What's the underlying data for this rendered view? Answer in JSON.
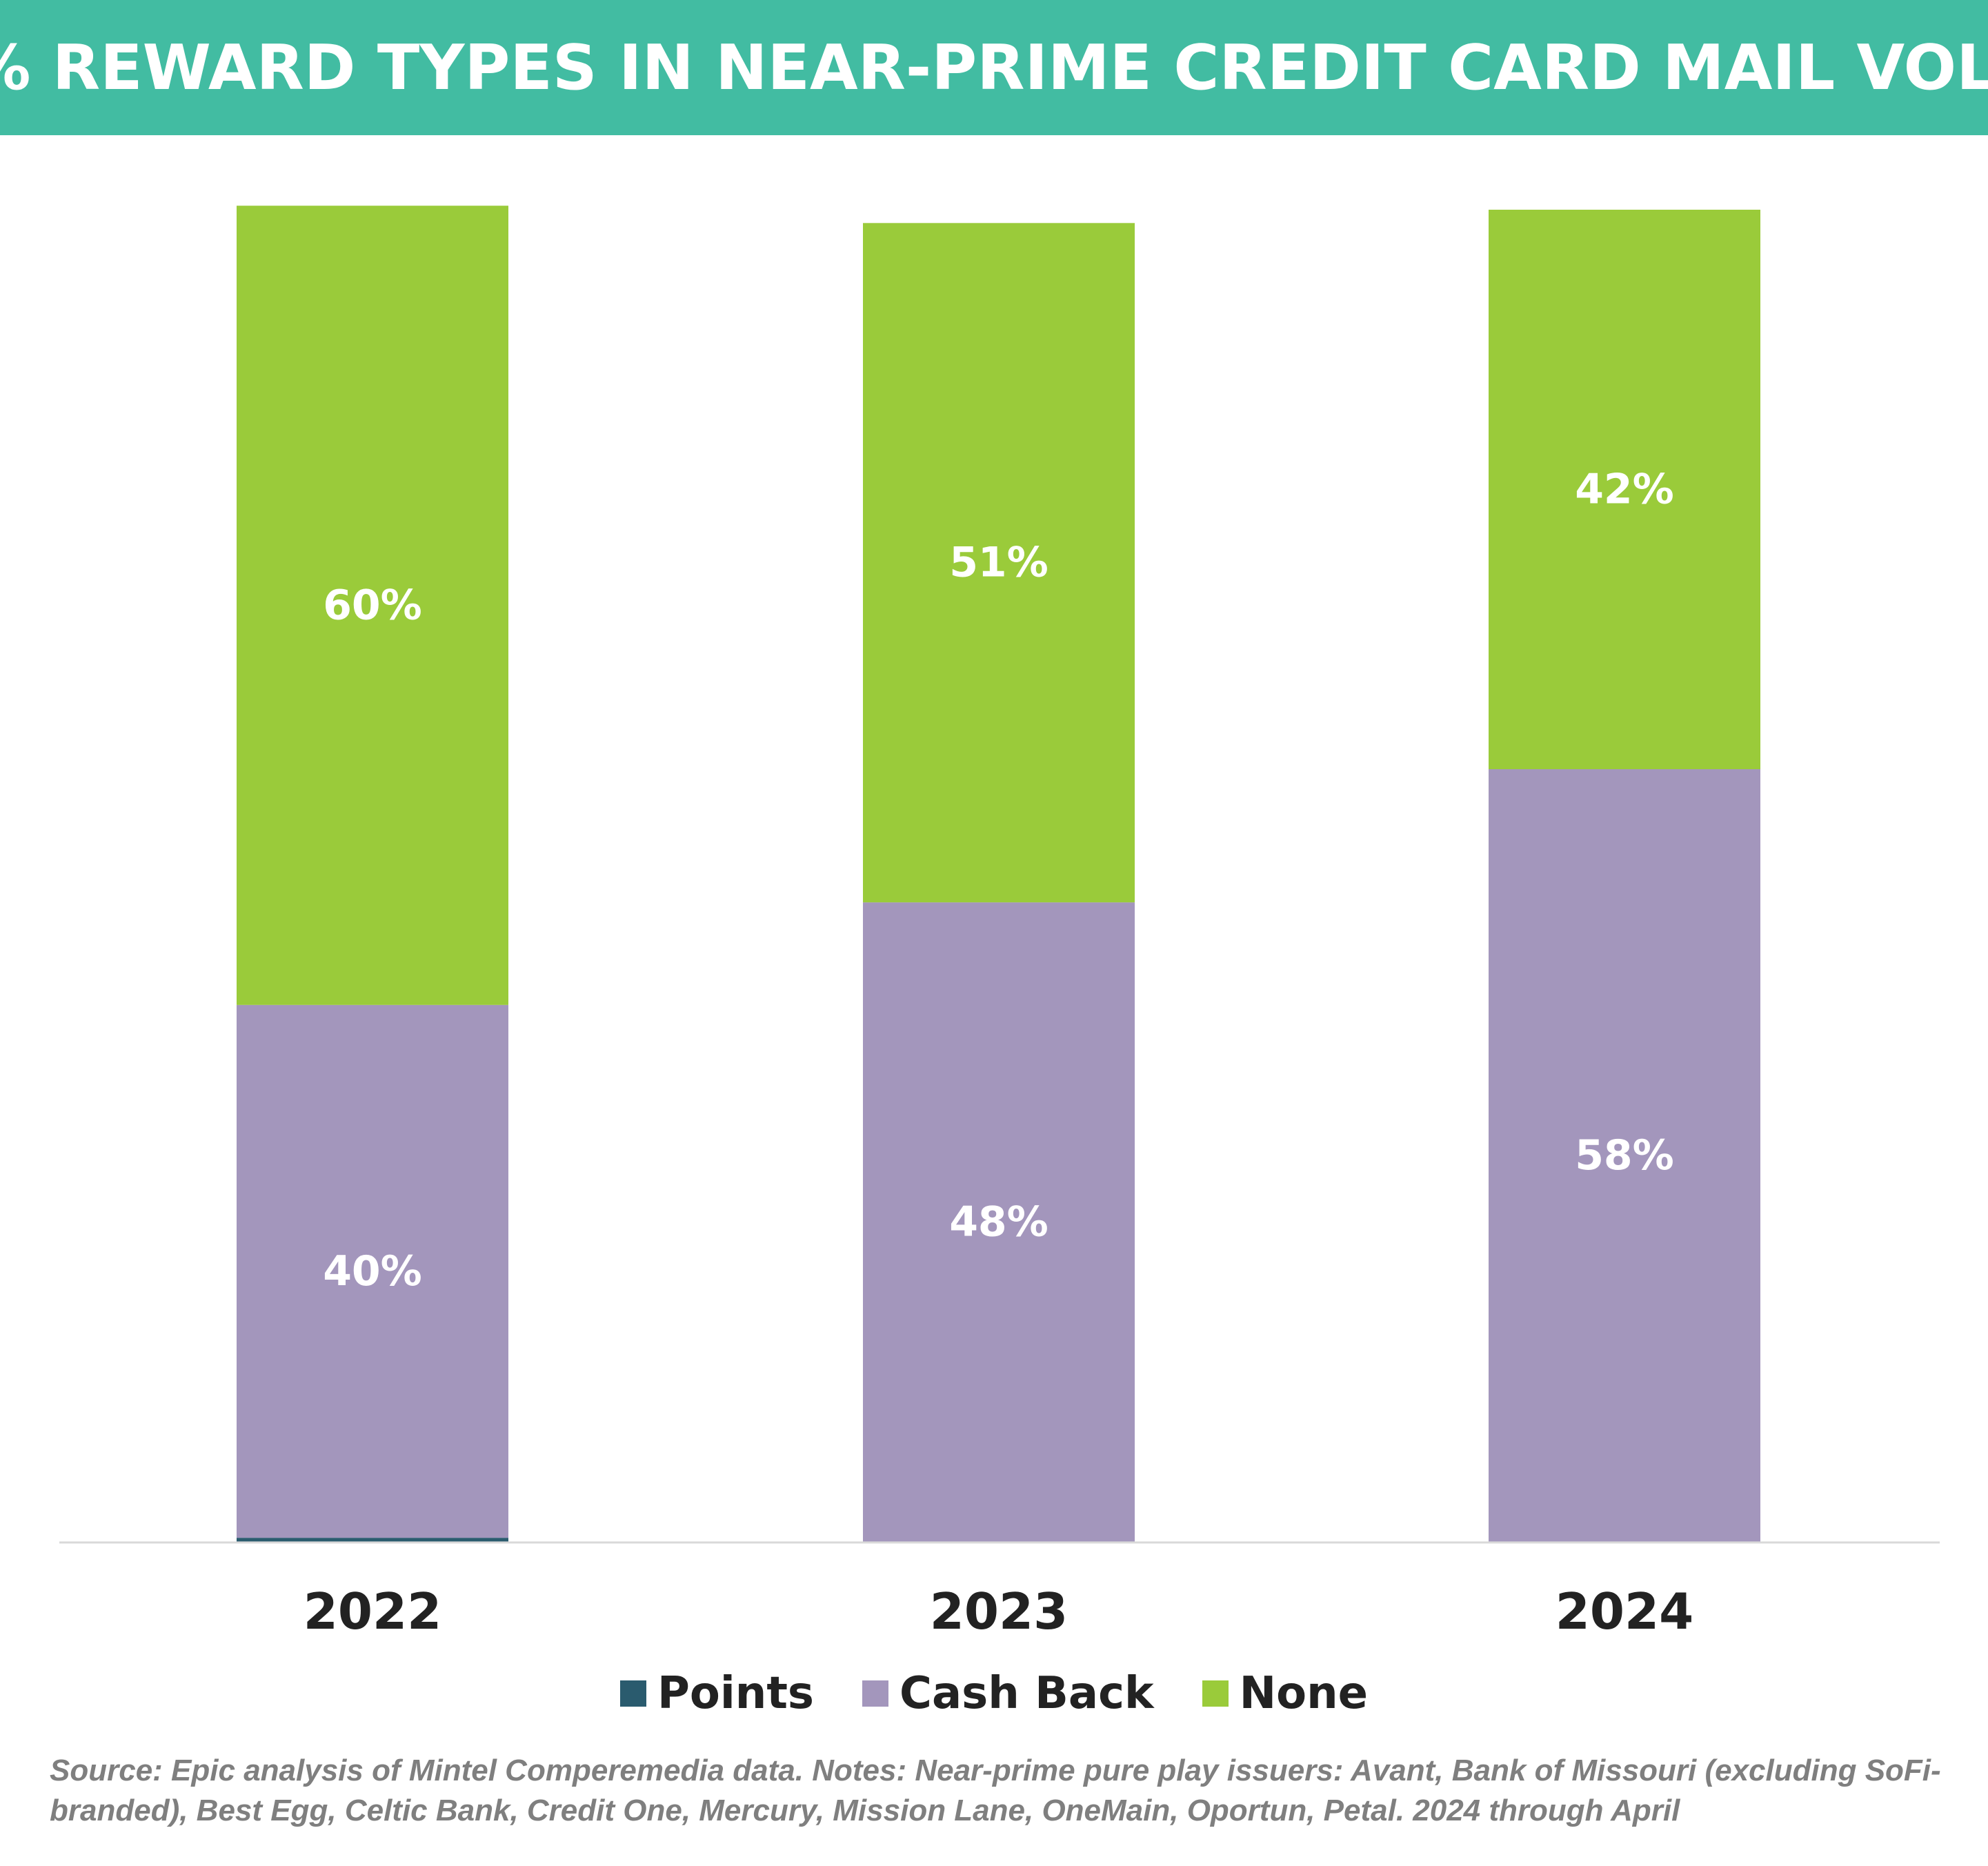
{
  "title": "% REWARD TYPES IN NEAR-PRIME CREDIT CARD MAIL VOL.",
  "colors": {
    "banner": "#42bca2",
    "points": "#2a5b6e",
    "cash_back": "#a396bc",
    "none": "#9acb3a",
    "axis": "#d9d9d9",
    "label_text": "#ffffff",
    "tick_text": "#222222"
  },
  "chart_data": {
    "type": "bar",
    "stacked": true,
    "categories": [
      "2022",
      "2023",
      "2024"
    ],
    "series": [
      {
        "name": "Points",
        "values": [
          0.3,
          0,
          0
        ],
        "labels": [
          "",
          "",
          ""
        ]
      },
      {
        "name": "Cash Back",
        "values": [
          40,
          48,
          58
        ],
        "labels": [
          "40%",
          "48%",
          "58%"
        ]
      },
      {
        "name": "None",
        "values": [
          60,
          51,
          42
        ],
        "labels": [
          "60%",
          "51%",
          "42%"
        ]
      }
    ],
    "ylim": [
      0,
      100
    ],
    "legend_position": "bottom",
    "grid": false
  },
  "legend": [
    {
      "label": "Points"
    },
    {
      "label": "Cash Back"
    },
    {
      "label": "None"
    }
  ],
  "source_note": "Source: Epic analysis of Mintel Comperemedia data. Notes: Near-prime pure play issuers: Avant, Bank of Missouri (excluding SoFi-branded), Best Egg, Celtic Bank, Credit One, Mercury, Mission Lane, OneMain, Oportun, Petal. 2024 through April"
}
